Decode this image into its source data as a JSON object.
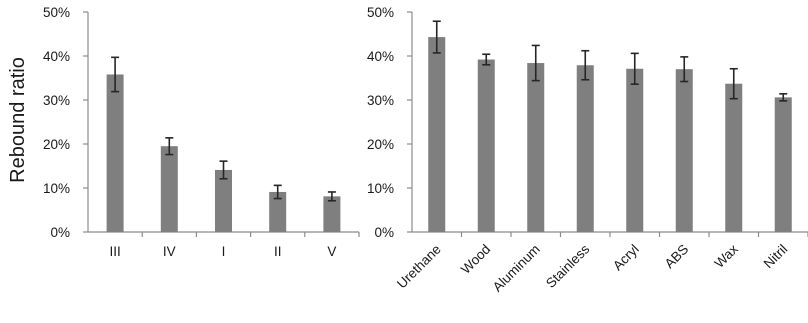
{
  "chart_data": [
    {
      "type": "bar",
      "title": "",
      "xlabel": "",
      "ylabel": "Rebound ratio",
      "ylim": [
        0,
        50
      ],
      "yticks": [
        "0%",
        "10%",
        "20%",
        "30%",
        "40%",
        "50%"
      ],
      "categories": [
        "III",
        "IV",
        "I",
        "II",
        "V"
      ],
      "values": [
        35.8,
        19.5,
        14.1,
        9.1,
        8.1
      ],
      "errors": [
        3.9,
        1.9,
        2.0,
        1.5,
        1.0
      ],
      "bar_color": "#7f7f7f",
      "error_color": "#262626",
      "grid": false
    },
    {
      "type": "bar",
      "title": "",
      "xlabel": "",
      "ylabel": "",
      "ylim": [
        0,
        50
      ],
      "yticks": [
        "0%",
        "10%",
        "20%",
        "30%",
        "40%",
        "50%"
      ],
      "categories": [
        "Urethane",
        "Wood",
        "Aluminum",
        "Stainless",
        "Acryl",
        "ABS",
        "Wax",
        "Nitril"
      ],
      "values": [
        44.3,
        39.2,
        38.4,
        37.9,
        37.1,
        37.0,
        33.7,
        30.6
      ],
      "errors": [
        3.6,
        1.2,
        4.0,
        3.3,
        3.5,
        2.8,
        3.4,
        0.8
      ],
      "bar_color": "#7f7f7f",
      "error_color": "#262626",
      "grid": false
    }
  ]
}
